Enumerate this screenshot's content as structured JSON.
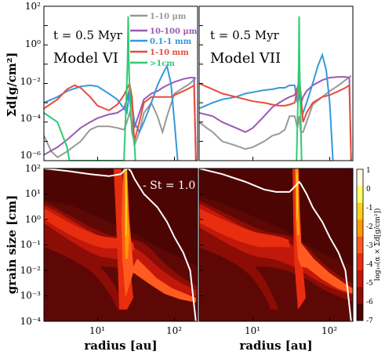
{
  "chart_data": [
    {
      "type": "line",
      "panel": "top-left",
      "time_label": "t = 0.5 Myr",
      "model_label": "Model VI",
      "ylabel": "Σd[g/cm²]",
      "yscale": "log",
      "ylim": [
        1e-06,
        100
      ],
      "xscale": "log",
      "xlim": [
        2,
        200
      ],
      "yticks": [
        "10⁻⁶",
        "10⁻⁴",
        "10⁻²",
        "10⁰",
        "10²"
      ],
      "legend_placement": "top-right",
      "legend": [
        "1-10 μm",
        "10-100 μm",
        "0.1-1 mm",
        "1-10 mm",
        ">1cm"
      ],
      "series": [
        {
          "name": "1-10 μm",
          "color": "#999999",
          "x": [
            2,
            2.5,
            3,
            4,
            6,
            8,
            10,
            14,
            18,
            22,
            24,
            26,
            28,
            30,
            35,
            40,
            50,
            60,
            70,
            80,
            100,
            130,
            160,
            190
          ],
          "y": [
            2e-05,
            3e-06,
            1.5e-06,
            3e-06,
            1e-05,
            4e-05,
            6e-05,
            6e-05,
            5e-05,
            4e-05,
            0.0001,
            0.0003,
            0.0001,
            6e-06,
            3e-05,
            0.0003,
            0.001,
            0.0002,
            3e-05,
            0.0002,
            0.003,
            0.006,
            0.01,
            0.02
          ]
        },
        {
          "name": "10-100 μm",
          "color": "#9b59b6",
          "x": [
            2,
            3,
            4,
            6,
            8,
            10,
            14,
            18,
            22,
            24,
            26,
            28,
            30,
            35,
            40,
            50,
            60,
            70,
            80,
            100,
            130,
            160,
            180,
            190
          ],
          "y": [
            2e-06,
            5e-06,
            1.2e-05,
            5e-05,
            0.0001,
            0.00016,
            0.00025,
            0.0003,
            0.0005,
            0.0015,
            0.005,
            0.0008,
            5e-05,
            0.0003,
            0.0015,
            0.003,
            0.004,
            0.006,
            0.008,
            0.012,
            0.017,
            0.02,
            0.02,
            1e-06
          ]
        },
        {
          "name": "0.1-1 mm",
          "color": "#3498db",
          "x": [
            2,
            3,
            4,
            6,
            8,
            10,
            14,
            18,
            22,
            24,
            26,
            28,
            30,
            35,
            40,
            50,
            60,
            70,
            80,
            90,
            100,
            110
          ],
          "y": [
            0.001,
            0.002,
            0.004,
            0.007,
            0.008,
            0.007,
            0.003,
            0.0015,
            0.0005,
            0.0003,
            0.004,
            0.001,
            0.0001,
            3e-05,
            0.0001,
            0.001,
            0.008,
            0.03,
            0.08,
            0.01,
            0.0001,
            1e-06
          ]
        },
        {
          "name": "1-10 mm",
          "color": "#e74c3c",
          "x": [
            2,
            3,
            4,
            5,
            6,
            8,
            10,
            14,
            18,
            22,
            24,
            26,
            28,
            30,
            35,
            40,
            50,
            60,
            70,
            80,
            90,
            100,
            130,
            160,
            180,
            190
          ],
          "y": [
            0.0005,
            0.0015,
            0.005,
            0.008,
            0.006,
            0.002,
            0.0007,
            0.0004,
            0.0008,
            0.0025,
            0.005,
            0.01,
            0.002,
            1e-05,
            0.0001,
            0.001,
            0.002,
            0.002,
            0.002,
            0.002,
            0.002,
            0.0025,
            0.004,
            0.006,
            0.008,
            1e-06
          ]
        },
        {
          "name": ">1cm",
          "color": "#2ecc71",
          "x": [
            2,
            3,
            4,
            4.3,
            22,
            23.5,
            24.5,
            25,
            25.5,
            26.5,
            28,
            30,
            31
          ],
          "y": [
            0.0003,
            0.0001,
            5e-06,
            1e-06,
            1e-06,
            0.001,
            0.1,
            30,
            0.1,
            0.001,
            3e-05,
            1e-05,
            1e-06
          ]
        }
      ]
    },
    {
      "type": "line",
      "panel": "top-right",
      "time_label": "t = 0.5 Myr",
      "model_label": "Model VII",
      "yscale": "log",
      "ylim": [
        1e-06,
        100
      ],
      "xscale": "log",
      "xlim": [
        2,
        200
      ],
      "series": [
        {
          "name": "1-10 μm",
          "color": "#999999",
          "x": [
            2,
            2.5,
            3,
            4,
            6,
            8,
            10,
            14,
            18,
            22,
            26,
            30,
            35,
            38,
            40,
            42,
            45,
            50,
            60,
            80,
            100,
            130,
            160,
            190
          ],
          "y": [
            0.0001,
            5e-05,
            3e-05,
            1e-05,
            6e-06,
            4e-06,
            5e-06,
            1e-05,
            2e-05,
            2.5e-05,
            4e-05,
            0.0002,
            0.0002,
            5e-05,
            0.0002,
            3e-05,
            3e-05,
            0.0001,
            0.0008,
            0.002,
            0.004,
            0.008,
            0.015,
            0.025
          ]
        },
        {
          "name": "10-100 μm",
          "color": "#9b59b6",
          "x": [
            2,
            3,
            4,
            6,
            8,
            10,
            14,
            18,
            22,
            26,
            30,
            35,
            38,
            40,
            42,
            45,
            50,
            60,
            80,
            100,
            130,
            160,
            180,
            190
          ],
          "y": [
            0.0003,
            0.0002,
            0.0001,
            5e-05,
            3e-05,
            5e-05,
            0.0002,
            0.0006,
            0.001,
            0.0015,
            0.002,
            0.0025,
            0.006,
            0.002,
            0.0008,
            0.002,
            0.004,
            0.008,
            0.015,
            0.02,
            0.022,
            0.022,
            0.02,
            1e-06
          ]
        },
        {
          "name": "0.1-1 mm",
          "color": "#3498db",
          "x": [
            2,
            3,
            4,
            6,
            8,
            10,
            14,
            18,
            22,
            26,
            30,
            35,
            38,
            40,
            42,
            45,
            50,
            60,
            70,
            80,
            90,
            100,
            110
          ],
          "y": [
            0.0005,
            0.001,
            0.0015,
            0.002,
            0.003,
            0.0035,
            0.0045,
            0.005,
            0.006,
            0.006,
            0.008,
            0.008,
            0.001,
            0.008,
            0.0005,
            0.0003,
            0.001,
            0.01,
            0.08,
            0.3,
            0.05,
            0.001,
            1e-06
          ]
        },
        {
          "name": "1-10 mm",
          "color": "#e74c3c",
          "x": [
            2,
            3,
            4,
            6,
            8,
            10,
            14,
            18,
            22,
            26,
            30,
            35,
            38,
            40,
            42,
            45,
            50,
            60,
            80,
            100,
            130,
            160,
            180,
            190
          ],
          "y": [
            0.01,
            0.005,
            0.003,
            0.002,
            0.0015,
            0.0012,
            0.001,
            0.0008,
            0.0007,
            0.0007,
            0.0008,
            0.001,
            0.005,
            0.02,
            0.003,
            0.0001,
            0.0003,
            0.001,
            0.002,
            0.0025,
            0.004,
            0.006,
            0.008,
            1e-06
          ]
        },
        {
          "name": ">1cm",
          "color": "#2ecc71",
          "x": [
            37,
            38.5,
            39.5,
            40,
            40.5,
            41.5,
            43
          ],
          "y": [
            1e-06,
            0.001,
            0.1,
            30,
            0.1,
            0.001,
            1e-06
          ]
        }
      ]
    },
    {
      "type": "heatmap",
      "panel": "bottom-left",
      "xlabel": "radius [au]",
      "ylabel": "grain size [cm]",
      "xscale": "log",
      "xlim": [
        2,
        200
      ],
      "yscale": "log",
      "ylim": [
        0.0001,
        100
      ],
      "xticks": [
        "10¹",
        "10²"
      ],
      "yticks": [
        "10⁻⁴",
        "10⁻³",
        "10⁻²",
        "10⁻¹",
        "10⁰",
        "10¹",
        "10²"
      ],
      "annotation": "- St = 1.0",
      "st1_curve": {
        "x": [
          2,
          4,
          8,
          14,
          20,
          23,
          25,
          27,
          30,
          40,
          60,
          80,
          100,
          130,
          160,
          190
        ],
        "y": [
          100,
          80,
          60,
          50,
          60,
          90,
          100,
          80,
          40,
          10,
          3,
          0.8,
          0.2,
          0.05,
          0.01,
          0.0001
        ]
      }
    },
    {
      "type": "heatmap",
      "panel": "bottom-right",
      "xlabel": "radius [au]",
      "xscale": "log",
      "xlim": [
        2,
        200
      ],
      "yscale": "log",
      "ylim": [
        0.0001,
        100
      ],
      "xticks": [
        "10¹",
        "10²"
      ],
      "st1_curve": {
        "x": [
          2,
          4,
          8,
          14,
          20,
          30,
          38,
          40,
          42,
          50,
          60,
          80,
          100,
          130,
          160,
          190
        ],
        "y": [
          100,
          60,
          30,
          15,
          12,
          12,
          25,
          30,
          25,
          10,
          3,
          0.8,
          0.2,
          0.05,
          0.01,
          0.0001
        ]
      },
      "colorbar": {
        "label": "log₁₀(α × Σd[g/cm²])",
        "ticks": [
          "1",
          "0",
          "-1",
          "-2",
          "-3",
          "-4",
          "-5",
          "-6",
          "-7"
        ],
        "colors": [
          "#fffde0",
          "#ffff66",
          "#ffd11a",
          "#ff9a00",
          "#ff5a1f",
          "#e82e0f",
          "#c0180a",
          "#8c0c06",
          "#4d0504"
        ]
      }
    }
  ]
}
